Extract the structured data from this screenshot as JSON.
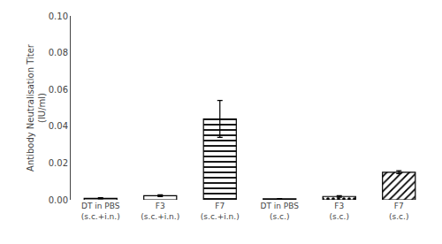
{
  "chart_data": {
    "type": "bar",
    "categories": [
      "DT in PBS\n(s.c.+i.n.)",
      "F3\n(s.c.+i.n.)",
      "F7\n(s.c.+i.n.)",
      "DT in PBS\n(s.c.)",
      "F3\n(s.c.)",
      "F7\n(s.c.)"
    ],
    "values": [
      0.0008,
      0.0022,
      0.044,
      0.0005,
      0.0018,
      0.015
    ],
    "errors": [
      0.0003,
      0.0005,
      0.01,
      0.0002,
      0.0004,
      0.0008
    ],
    "ylabel": "Antibody Neutralisation Titer\n(IU/ml)",
    "ylim": [
      0,
      0.1
    ],
    "yticks": [
      {
        "value": 0,
        "label": "0.00"
      },
      0.02,
      0.04,
      0.06,
      0.08,
      {
        "value": 0.1,
        "label": "0.10"
      }
    ],
    "color": "#ffffff",
    "grid": false
  }
}
